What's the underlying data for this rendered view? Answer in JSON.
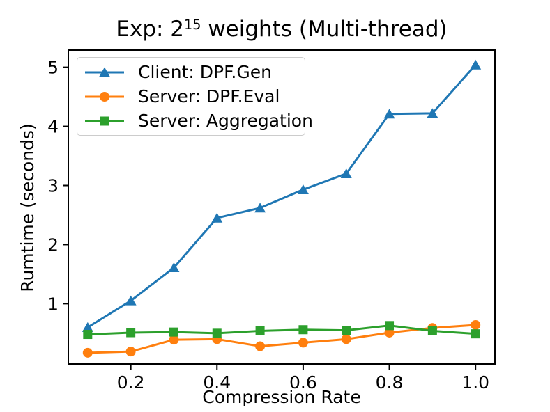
{
  "figure": {
    "title": {
      "prefix": "Exp: 2",
      "superscript": "15",
      "suffix": " weights (Multi-thread)"
    }
  },
  "chart_data": {
    "type": "line",
    "title": "Exp: 2^15 weights (Multi-thread)",
    "xlabel": "Compression Rate",
    "ylabel": "Rumtime (seconds)",
    "x": [
      0.1,
      0.2,
      0.3,
      0.4,
      0.5,
      0.6,
      0.7,
      0.8,
      0.9,
      1.0
    ],
    "series": [
      {
        "name": "Client: DPF.Gen",
        "color": "#1f77b4",
        "marker": "triangle-up",
        "values": [
          0.6,
          1.05,
          1.61,
          2.45,
          2.62,
          2.93,
          3.2,
          4.21,
          4.22,
          5.04
        ]
      },
      {
        "name": "Server: DPF.Eval",
        "color": "#ff7f0e",
        "marker": "circle",
        "values": [
          0.17,
          0.19,
          0.39,
          0.4,
          0.28,
          0.34,
          0.4,
          0.51,
          0.59,
          0.64
        ]
      },
      {
        "name": "Server: Aggregation",
        "color": "#2ca02c",
        "marker": "square",
        "values": [
          0.48,
          0.51,
          0.52,
          0.5,
          0.54,
          0.56,
          0.55,
          0.63,
          0.54,
          0.49
        ]
      }
    ],
    "xticks": [
      0.2,
      0.4,
      0.6,
      0.8,
      1.0
    ],
    "yticks": [
      1,
      2,
      3,
      4,
      5
    ],
    "xlim": [
      0.055,
      1.045
    ],
    "ylim": [
      -0.02,
      5.29
    ],
    "grid": false,
    "legend_position": "upper-left",
    "axis_color": "#000000"
  }
}
